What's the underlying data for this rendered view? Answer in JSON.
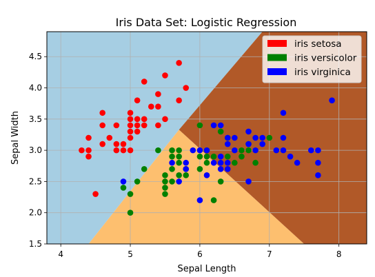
{
  "chart_data": {
    "type": "scatter",
    "title": "Iris Data Set: Logistic Regression",
    "xlabel": "Sepal Length",
    "ylabel": "Sepal Width",
    "xlim": [
      3.8,
      8.4
    ],
    "ylim": [
      1.5,
      4.9
    ],
    "x_ticks": [
      "4",
      "5",
      "6",
      "7",
      "8"
    ],
    "y_ticks": [
      "1.5",
      "2.0",
      "2.5",
      "3.0",
      "3.5",
      "4.0",
      "4.5"
    ],
    "grid": true,
    "legend_position": "top-right",
    "decision_regions": [
      {
        "class": "iris setosa",
        "color": "#a6cee3"
      },
      {
        "class": "iris versicolor",
        "color": "#fdbf6f"
      },
      {
        "class": "iris virginica",
        "color": "#b15928"
      }
    ],
    "series": [
      {
        "name": "iris setosa",
        "color": "#ff0000",
        "points": [
          [
            4.3,
            3.0
          ],
          [
            4.4,
            3.0
          ],
          [
            4.4,
            2.9
          ],
          [
            4.4,
            3.2
          ],
          [
            4.5,
            2.3
          ],
          [
            4.6,
            3.1
          ],
          [
            4.6,
            3.4
          ],
          [
            4.6,
            3.6
          ],
          [
            4.7,
            3.2
          ],
          [
            4.8,
            3.0
          ],
          [
            4.8,
            3.1
          ],
          [
            4.8,
            3.4
          ],
          [
            4.9,
            3.0
          ],
          [
            4.9,
            3.1
          ],
          [
            5.0,
            3.0
          ],
          [
            5.0,
            3.2
          ],
          [
            5.0,
            3.3
          ],
          [
            5.0,
            3.4
          ],
          [
            5.0,
            3.5
          ],
          [
            5.0,
            3.6
          ],
          [
            5.1,
            3.3
          ],
          [
            5.1,
            3.4
          ],
          [
            5.1,
            3.5
          ],
          [
            5.1,
            3.8
          ],
          [
            5.2,
            3.4
          ],
          [
            5.2,
            3.5
          ],
          [
            5.2,
            4.1
          ],
          [
            5.3,
            3.7
          ],
          [
            5.4,
            3.4
          ],
          [
            5.4,
            3.7
          ],
          [
            5.4,
            3.9
          ],
          [
            5.5,
            3.5
          ],
          [
            5.5,
            4.2
          ],
          [
            5.7,
            3.8
          ],
          [
            5.7,
            4.4
          ],
          [
            5.8,
            4.0
          ]
        ]
      },
      {
        "name": "iris versicolor",
        "color": "#008000",
        "points": [
          [
            4.9,
            2.4
          ],
          [
            5.0,
            2.0
          ],
          [
            5.0,
            2.3
          ],
          [
            5.1,
            2.5
          ],
          [
            5.2,
            2.7
          ],
          [
            5.4,
            3.0
          ],
          [
            5.5,
            2.3
          ],
          [
            5.5,
            2.4
          ],
          [
            5.5,
            2.5
          ],
          [
            5.5,
            2.6
          ],
          [
            5.6,
            2.5
          ],
          [
            5.6,
            2.7
          ],
          [
            5.6,
            2.9
          ],
          [
            5.6,
            3.0
          ],
          [
            5.7,
            2.6
          ],
          [
            5.7,
            2.8
          ],
          [
            5.7,
            2.9
          ],
          [
            5.7,
            3.0
          ],
          [
            5.8,
            2.6
          ],
          [
            5.8,
            2.7
          ],
          [
            6.0,
            2.7
          ],
          [
            6.0,
            2.9
          ],
          [
            6.0,
            3.4
          ],
          [
            6.1,
            2.8
          ],
          [
            6.1,
            2.9
          ],
          [
            6.1,
            3.0
          ],
          [
            6.2,
            2.2
          ],
          [
            6.2,
            2.9
          ],
          [
            6.3,
            2.5
          ],
          [
            6.3,
            3.3
          ],
          [
            6.4,
            2.9
          ],
          [
            6.4,
            3.2
          ],
          [
            6.5,
            2.8
          ],
          [
            6.6,
            2.9
          ],
          [
            6.6,
            3.0
          ],
          [
            6.7,
            3.0
          ],
          [
            6.7,
            3.1
          ],
          [
            6.8,
            2.8
          ],
          [
            7.0,
            3.2
          ]
        ]
      },
      {
        "name": "iris virginica",
        "color": "#0000ff",
        "points": [
          [
            4.9,
            2.5
          ],
          [
            5.6,
            2.8
          ],
          [
            5.7,
            2.5
          ],
          [
            5.8,
            2.7
          ],
          [
            5.8,
            2.8
          ],
          [
            5.9,
            3.0
          ],
          [
            6.0,
            2.2
          ],
          [
            6.0,
            3.0
          ],
          [
            6.1,
            2.6
          ],
          [
            6.1,
            3.0
          ],
          [
            6.2,
            2.8
          ],
          [
            6.2,
            3.4
          ],
          [
            6.3,
            2.7
          ],
          [
            6.3,
            2.8
          ],
          [
            6.3,
            2.9
          ],
          [
            6.3,
            3.4
          ],
          [
            6.4,
            2.7
          ],
          [
            6.4,
            2.8
          ],
          [
            6.4,
            3.1
          ],
          [
            6.4,
            3.2
          ],
          [
            6.5,
            3.0
          ],
          [
            6.5,
            3.2
          ],
          [
            6.7,
            2.5
          ],
          [
            6.7,
            3.1
          ],
          [
            6.7,
            3.3
          ],
          [
            6.8,
            3.0
          ],
          [
            6.8,
            3.2
          ],
          [
            6.9,
            3.1
          ],
          [
            6.9,
            3.2
          ],
          [
            7.1,
            3.0
          ],
          [
            7.2,
            3.0
          ],
          [
            7.2,
            3.2
          ],
          [
            7.2,
            3.6
          ],
          [
            7.3,
            2.9
          ],
          [
            7.4,
            2.8
          ],
          [
            7.6,
            3.0
          ],
          [
            7.7,
            2.6
          ],
          [
            7.7,
            2.8
          ],
          [
            7.7,
            3.0
          ],
          [
            7.9,
            3.8
          ]
        ]
      }
    ]
  }
}
